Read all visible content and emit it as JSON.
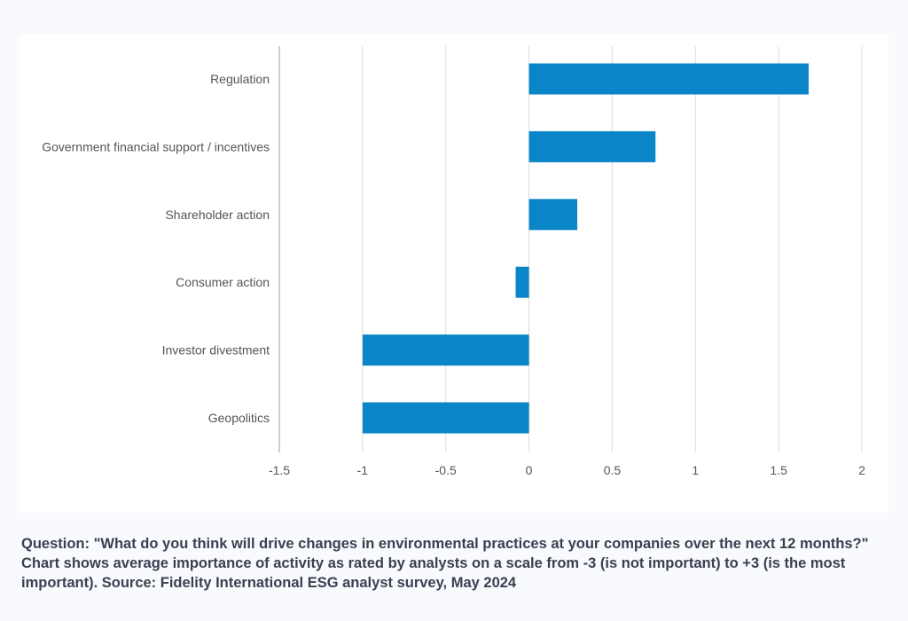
{
  "chart_data": {
    "type": "bar",
    "orientation": "horizontal",
    "categories": [
      "Regulation",
      "Government financial support / incentives",
      "Shareholder action",
      "Consumer action",
      "Investor divestment",
      "Geopolitics"
    ],
    "values": [
      1.68,
      0.76,
      0.29,
      -0.08,
      -1.0,
      -1.0
    ],
    "xlim": [
      -1.5,
      2
    ],
    "xticks": [
      "-1.5",
      "-1",
      "-0.5",
      "0",
      "0.5",
      "1",
      "1.5",
      "2"
    ],
    "grid": true,
    "title": "",
    "xlabel": "",
    "ylabel": "",
    "bar_color": "#0a86c8",
    "grid_color": "#dcdcdc"
  },
  "caption": "Question: \"What do you think will drive changes in environmental practices at your companies over the next 12 months?\" Chart shows average importance of activity as rated by analysts on a scale from -3 (is not important) to +3 (is the most important). Source: Fidelity International ESG analyst survey, May 2024"
}
